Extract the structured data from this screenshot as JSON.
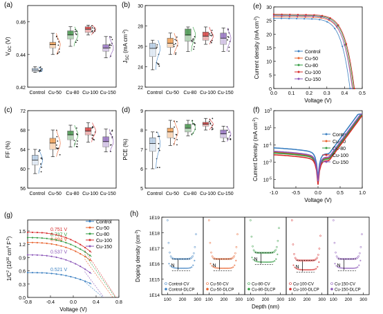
{
  "colors": {
    "Control": "#3a7fc1",
    "Cu-50": "#e8602a",
    "Cu-80": "#2e9a3e",
    "Cu-100": "#d62a2a",
    "Cu-150": "#8a55b8",
    "Control_box": "#b9cfe6",
    "Cu-50_box": "#f2a45c",
    "Cu-80_box": "#4f9a55",
    "Cu-100_box": "#d64a4a",
    "Cu-150_box": "#9b79c4"
  },
  "chart_data": [
    {
      "panel": "(a)",
      "type": "box",
      "categories": [
        "Control",
        "Cu-50",
        "Cu-80",
        "Cu-100",
        "Cu-150"
      ],
      "ylabel_main": "V",
      "ylabel_sub": "OC",
      "ylabel_tail": " (V)",
      "ylim": [
        0.42,
        0.47
      ],
      "yticks": [
        0.42,
        0.44,
        0.46
      ],
      "boxes": [
        {
          "q1": 0.4295,
          "q3": 0.4315,
          "median": 0.4305,
          "min": 0.429,
          "max": 0.4325
        },
        {
          "q1": 0.444,
          "q3": 0.4475,
          "median": 0.446,
          "min": 0.44,
          "max": 0.453
        },
        {
          "q1": 0.4495,
          "q3": 0.4545,
          "median": 0.452,
          "min": 0.445,
          "max": 0.457
        },
        {
          "q1": 0.4535,
          "q3": 0.457,
          "median": 0.4555,
          "min": 0.452,
          "max": 0.458
        },
        {
          "q1": 0.442,
          "q3": 0.446,
          "median": 0.444,
          "min": 0.438,
          "max": 0.451
        }
      ]
    },
    {
      "panel": "(b)",
      "type": "box",
      "categories": [
        "Control",
        "Cu-50",
        "Cu-80",
        "Cu-100",
        "Cu-150"
      ],
      "ylabel_main": "J",
      "ylabel_sub": "SC",
      "ylabel_tail": " (mA cm",
      "ylim": [
        22,
        30
      ],
      "yticks": [
        22,
        24,
        26,
        28,
        30
      ],
      "boxes": [
        {
          "q1": 25.0,
          "q3": 26.3,
          "median": 25.8,
          "min": 23.7,
          "max": 26.6
        },
        {
          "q1": 25.9,
          "q3": 26.8,
          "median": 26.3,
          "min": 25.2,
          "max": 27.3
        },
        {
          "q1": 26.5,
          "q3": 27.7,
          "median": 27.1,
          "min": 25.5,
          "max": 27.9
        },
        {
          "q1": 26.6,
          "q3": 27.4,
          "median": 27.0,
          "min": 26.2,
          "max": 27.9
        },
        {
          "q1": 26.2,
          "q3": 27.3,
          "median": 26.8,
          "min": 25.5,
          "max": 27.8
        }
      ]
    },
    {
      "panel": "(e)",
      "type": "line",
      "xlabel": "Voltage (V)",
      "ylabel": "Current density (mA cm",
      "xlim": [
        0,
        0.5
      ],
      "ylim": [
        0,
        30
      ],
      "xticks": [
        0.0,
        0.1,
        0.2,
        0.3,
        0.4,
        0.5
      ],
      "yticks": [
        0,
        5,
        10,
        15,
        20,
        25,
        30
      ],
      "series": [
        {
          "name": "Control",
          "jsc": 25.8,
          "voc": 0.431
        },
        {
          "name": "Cu-50",
          "jsc": 26.4,
          "voc": 0.446
        },
        {
          "name": "Cu-80",
          "jsc": 27.0,
          "voc": 0.452
        },
        {
          "name": "Cu-100",
          "jsc": 27.3,
          "voc": 0.456
        },
        {
          "name": "Cu-150",
          "jsc": 26.8,
          "voc": 0.444
        }
      ]
    },
    {
      "panel": "(c)",
      "type": "box",
      "categories": [
        "Control",
        "Cu-50",
        "Cu-80",
        "Cu-100",
        "Cu-150"
      ],
      "ylabel": "FF (%)",
      "ylim": [
        56,
        72
      ],
      "yticks": [
        56,
        60,
        64,
        68,
        72
      ],
      "boxes": [
        {
          "q1": 60.8,
          "q3": 62.8,
          "median": 61.8,
          "min": 59.0,
          "max": 64.0
        },
        {
          "q1": 64.0,
          "q3": 66.3,
          "median": 65.3,
          "min": 62.5,
          "max": 68.0
        },
        {
          "q1": 66.0,
          "q3": 67.8,
          "median": 67.0,
          "min": 64.5,
          "max": 69.0
        },
        {
          "q1": 67.0,
          "q3": 68.5,
          "median": 67.8,
          "min": 65.5,
          "max": 69.5
        },
        {
          "q1": 64.5,
          "q3": 66.6,
          "median": 65.6,
          "min": 63.5,
          "max": 68.2
        }
      ]
    },
    {
      "panel": "(d)",
      "type": "box",
      "categories": [
        "Control",
        "Cu-50",
        "Cu-80",
        "Cu-100",
        "Cu-150"
      ],
      "ylabel": "PCE (%)",
      "ylim": [
        5,
        9
      ],
      "yticks": [
        5,
        6,
        7,
        8,
        9
      ],
      "boxes": [
        {
          "q1": 6.9,
          "q3": 7.6,
          "median": 7.3,
          "min": 6.0,
          "max": 7.9
        },
        {
          "q1": 7.6,
          "q3": 8.1,
          "median": 7.9,
          "min": 7.2,
          "max": 8.5
        },
        {
          "q1": 7.9,
          "q3": 8.3,
          "median": 8.1,
          "min": 7.7,
          "max": 8.5
        },
        {
          "q1": 8.2,
          "q3": 8.4,
          "median": 8.3,
          "min": 8.0,
          "max": 8.6
        },
        {
          "q1": 7.6,
          "q3": 8.0,
          "median": 7.8,
          "min": 7.4,
          "max": 8.2
        }
      ]
    },
    {
      "panel": "(f)",
      "type": "line",
      "yscale": "log",
      "xlabel": "Voltage (V)",
      "ylabel": "Current Density (mA cm",
      "xlim": [
        -1.0,
        1.0
      ],
      "ylim_exp": [
        -6,
        3
      ],
      "xticks": [
        -1.0,
        -0.5,
        0.0,
        0.5,
        1.0
      ],
      "yticks_exp": [
        -5,
        -3,
        -1,
        1,
        3
      ],
      "series": [
        {
          "name": "Control",
          "j0_exp": -2.0
        },
        {
          "name": "Cu-50",
          "j0_exp": -2.5
        },
        {
          "name": "Cu-80",
          "j0_exp": -2.6
        },
        {
          "name": "Cu-100",
          "j0_exp": -2.8
        },
        {
          "name": "Cu-150",
          "j0_exp": -2.4
        }
      ]
    },
    {
      "panel": "(g)",
      "type": "line",
      "xlabel": "Voltage (V)",
      "ylabel_a": "1/C",
      "ylabel_b": " (10",
      "ylabel_c": " cm",
      "ylabel_d": " F",
      "xlim": [
        -0.8,
        0.8
      ],
      "ylim": [
        0,
        1.75
      ],
      "xticks": [
        -0.8,
        -0.4,
        0.0,
        0.4,
        0.8
      ],
      "yticks": [
        0.0,
        0.3,
        0.6,
        0.9,
        1.2,
        1.5
      ],
      "series": [
        {
          "name": "Control",
          "vbi": 0.521,
          "label": "0.521 V",
          "y0": 0.56
        },
        {
          "name": "Cu-50",
          "vbi": 0.694,
          "label": "0.694 V",
          "y0": 1.24
        },
        {
          "name": "Cu-80",
          "vbi": 0.737,
          "label": "0.737 V",
          "y0": 1.35
        },
        {
          "name": "Cu-100",
          "vbi": 0.751,
          "label": "0.751 V",
          "y0": 1.47
        },
        {
          "name": "Cu-150",
          "vbi": 0.537,
          "label": "0.537 V",
          "y0": 0.96
        }
      ]
    },
    {
      "panel": "(h)",
      "type": "scatter",
      "yscale": "log",
      "xlabel": "Depth (nm)",
      "ylabel": "Doping density (cm",
      "ylim_exp": [
        14,
        19
      ],
      "yticks": [
        "1E14",
        "1E15",
        "1E16",
        "1E17",
        "1E18",
        "1E19"
      ],
      "xticks": [
        100,
        200,
        300
      ],
      "annotation": "N",
      "subplots": [
        {
          "name": "Control",
          "legend": [
            "Control-CV",
            "Control-DLCP"
          ]
        },
        {
          "name": "Cu-50",
          "legend": [
            "Cu-50-CV",
            "Cu-50-DLCP"
          ]
        },
        {
          "name": "Cu-80",
          "legend": [
            "Cu-80-CV",
            "Cu-80-DLCP"
          ]
        },
        {
          "name": "Cu-100",
          "legend": [
            "Cu-100-CV",
            "Cu-100-DLCP"
          ]
        },
        {
          "name": "Cu-150",
          "legend": [
            "Cu-150-CV",
            "Cu-150-DLCP"
          ]
        }
      ]
    }
  ]
}
